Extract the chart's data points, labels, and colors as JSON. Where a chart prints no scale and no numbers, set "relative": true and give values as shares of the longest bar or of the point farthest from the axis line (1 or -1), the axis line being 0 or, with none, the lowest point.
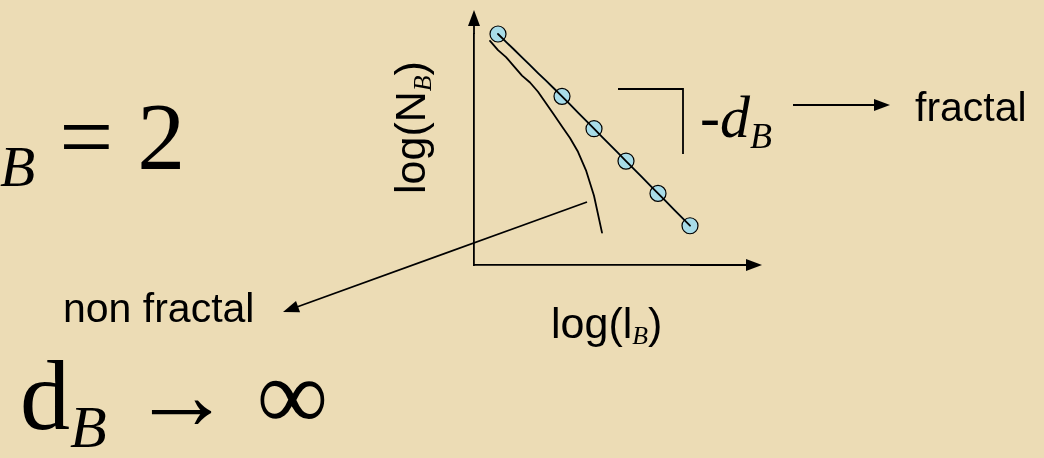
{
  "chart_data": {
    "type": "line",
    "relative": true,
    "xlabel": "log(l$_{B}$)",
    "ylabel": "log(N$_{B}$)",
    "tick_labels": false,
    "categories": [
      null,
      null,
      null,
      null,
      null,
      null,
      null,
      null,
      null,
      null,
      null,
      null,
      null,
      null,
      null,
      null,
      null,
      null,
      null,
      null,
      null,
      null,
      null,
      null,
      null,
      null,
      null,
      null
    ],
    "series": [
      {
        "color": "#a8dce8",
        "marker": "circle",
        "values": [
          null,
          null,
          null,
          1.0,
          null,
          null,
          null,
          null,
          null,
          null,
          null,
          0.73,
          null,
          null,
          null,
          0.59,
          null,
          null,
          null,
          0.45,
          null,
          null,
          null,
          0.31,
          null,
          null,
          null,
          0.17
        ]
      },
      {
        "name": "fractal",
        "color": "#000000",
        "values": [
          null,
          null,
          null,
          1.0,
          0.966,
          0.933,
          0.899,
          0.865,
          0.831,
          0.798,
          0.764,
          0.73,
          0.695,
          0.66,
          0.625,
          0.59,
          0.555,
          0.52,
          0.485,
          0.45,
          0.415,
          0.38,
          0.345,
          0.31,
          0.275,
          0.24,
          0.205,
          0.17
        ]
      },
      {
        "name": "non fractal",
        "color": "#000000",
        "values": [
          null,
          null,
          0.97,
          0.93,
          0.9,
          0.86,
          0.82,
          0.79,
          0.75,
          0.7,
          0.65,
          0.6,
          0.55,
          0.49,
          0.41,
          0.3,
          0.14,
          null,
          null,
          null,
          null,
          null,
          null,
          null,
          null,
          null,
          null,
          null
        ]
      }
    ],
    "annotations": [
      "$_{B}$ = 2",
      "d$_{B}$ → ∞",
      "-d$_{B}$"
    ]
  }
}
